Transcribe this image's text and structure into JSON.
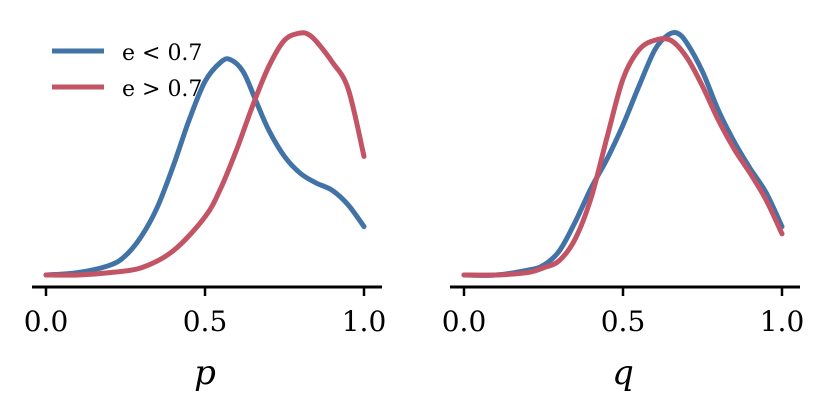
{
  "colors": {
    "low": "#4273a7",
    "high": "#c25465"
  },
  "chart_data": [
    {
      "type": "line",
      "xlabel": "p",
      "ylabel": "",
      "title": "",
      "xlim": [
        -0.05,
        1.05
      ],
      "ylim": [
        0,
        1
      ],
      "xticks": [
        0.0,
        0.5,
        1.0
      ],
      "xtick_labels": [
        "0.0",
        "0.5",
        "1.0"
      ],
      "grid": false,
      "legend": {
        "placement": "top-left"
      },
      "series": [
        {
          "name": "e < 0.7",
          "color_key": "low",
          "x": [
            0.0,
            0.1,
            0.2,
            0.25,
            0.3,
            0.35,
            0.4,
            0.45,
            0.5,
            0.55,
            0.58,
            0.62,
            0.66,
            0.7,
            0.75,
            0.8,
            0.85,
            0.9,
            0.95,
            1.0
          ],
          "y": [
            0.0,
            0.01,
            0.04,
            0.08,
            0.16,
            0.28,
            0.45,
            0.64,
            0.8,
            0.88,
            0.89,
            0.84,
            0.72,
            0.6,
            0.49,
            0.42,
            0.38,
            0.35,
            0.29,
            0.2
          ]
        },
        {
          "name": "e > 0.7",
          "color_key": "high",
          "x": [
            0.0,
            0.1,
            0.2,
            0.3,
            0.4,
            0.5,
            0.55,
            0.6,
            0.65,
            0.7,
            0.75,
            0.8,
            0.83,
            0.86,
            0.9,
            0.95,
            1.0
          ],
          "y": [
            0.0,
            0.0,
            0.01,
            0.03,
            0.1,
            0.24,
            0.36,
            0.52,
            0.7,
            0.86,
            0.97,
            1.0,
            0.99,
            0.95,
            0.88,
            0.77,
            0.49
          ]
        }
      ]
    },
    {
      "type": "line",
      "xlabel": "q",
      "ylabel": "",
      "title": "",
      "xlim": [
        -0.05,
        1.05
      ],
      "ylim": [
        0,
        1
      ],
      "xticks": [
        0.0,
        0.5,
        1.0
      ],
      "xtick_labels": [
        "0.0",
        "0.5",
        "1.0"
      ],
      "grid": false,
      "series": [
        {
          "name": "e < 0.7",
          "color_key": "low",
          "x": [
            0.0,
            0.1,
            0.2,
            0.25,
            0.3,
            0.35,
            0.4,
            0.45,
            0.5,
            0.55,
            0.6,
            0.64,
            0.67,
            0.7,
            0.75,
            0.8,
            0.85,
            0.9,
            0.95,
            1.0
          ],
          "y": [
            0.0,
            0.0,
            0.02,
            0.04,
            0.1,
            0.22,
            0.36,
            0.48,
            0.62,
            0.78,
            0.93,
            0.99,
            1.0,
            0.96,
            0.84,
            0.68,
            0.55,
            0.44,
            0.34,
            0.2
          ]
        },
        {
          "name": "e > 0.7",
          "color_key": "high",
          "x": [
            0.0,
            0.1,
            0.2,
            0.25,
            0.3,
            0.35,
            0.4,
            0.45,
            0.5,
            0.55,
            0.6,
            0.65,
            0.7,
            0.75,
            0.8,
            0.85,
            0.9,
            0.95,
            1.0
          ],
          "y": [
            0.0,
            0.0,
            0.01,
            0.03,
            0.06,
            0.15,
            0.32,
            0.57,
            0.81,
            0.93,
            0.97,
            0.97,
            0.9,
            0.78,
            0.64,
            0.52,
            0.42,
            0.31,
            0.17
          ]
        }
      ]
    }
  ]
}
